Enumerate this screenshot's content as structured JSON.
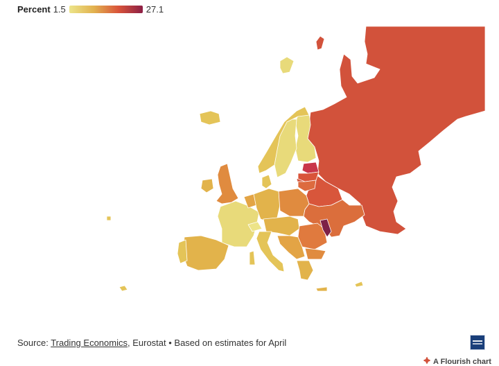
{
  "legend": {
    "title": "Percent",
    "min": "1.5",
    "max": "27.1",
    "gradient": [
      "#ece58a",
      "#e2b24f",
      "#d9543a",
      "#8c1f45"
    ]
  },
  "source": {
    "prefix": "Source: ",
    "link1": "Trading Economics",
    "sep": ", ",
    "rest": "Eurostat • Based on estimates for April"
  },
  "credit": {
    "label": "A Flourish chart"
  },
  "colors": {
    "russia": "#d2523b",
    "belarus": "#d8563b",
    "ukraine": "#db6e3c",
    "high_orange": "#e07a3e",
    "mid_orange": "#e08b3f",
    "orange_yellow": "#e3a445",
    "gold": "#e2b34b",
    "mid_yellow": "#e4c458",
    "pale_yellow": "#e8da7a",
    "lightest": "#ede488",
    "moldova": "#7d2147",
    "estonia": "#c9364a",
    "latvia": "#d9543a",
    "lithuania": "#dd6b3f"
  }
}
